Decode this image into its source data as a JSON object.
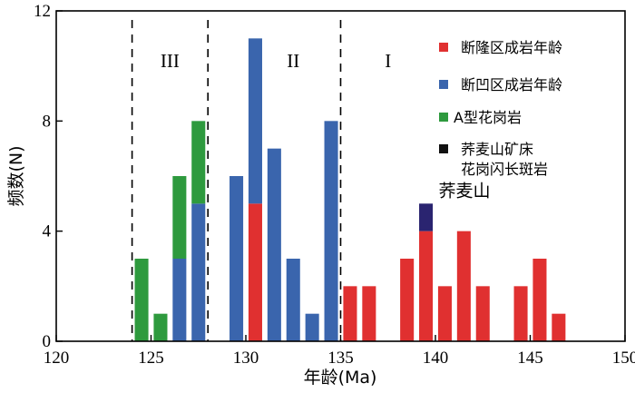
{
  "chart_data": {
    "type": "bar",
    "stacked": true,
    "xlabel": "年龄(Ma)",
    "ylabel": "频数(N)",
    "xlim": [
      120,
      150
    ],
    "ylim": [
      0,
      12
    ],
    "xticks": [
      120,
      125,
      130,
      135,
      140,
      145,
      150
    ],
    "yticks": [
      0,
      4,
      8,
      12
    ],
    "grid": false,
    "legend_position": "top-right",
    "zones": [
      {
        "label": "III",
        "from": 124,
        "to": 128
      },
      {
        "label": "II",
        "from": 128,
        "to": 135
      },
      {
        "label": "I",
        "from": 135,
        "to": 150
      }
    ],
    "zone_boundaries": [
      124,
      128,
      135
    ],
    "series": [
      {
        "name": "断隆区成岩年龄",
        "color": "#e03030",
        "x": [
          130.5,
          135.5,
          136.5,
          138.5,
          139.5,
          140.5,
          141.5,
          142.5,
          144.5,
          145.5,
          146.5
        ],
        "values": [
          5,
          2,
          2,
          3,
          4,
          2,
          4,
          2,
          2,
          3,
          1
        ]
      },
      {
        "name": "断凹区成岩年龄",
        "color": "#3a65ad",
        "x": [
          126.5,
          127.5,
          129.5,
          130.5,
          131.5,
          132.5,
          133.5,
          134.5
        ],
        "values": [
          3,
          5,
          6,
          6,
          7,
          3,
          1,
          8
        ]
      },
      {
        "name": "A型花岗岩",
        "color": "#2e9a3e",
        "x": [
          124.5,
          125.5,
          126.5,
          127.5
        ],
        "values": [
          3,
          1,
          3,
          3
        ]
      },
      {
        "name": "荞麦山矿床花岗闪长斑岩",
        "color": "#2a2470",
        "x": [
          139.5
        ],
        "values": [
          1
        ]
      }
    ],
    "annotations": [
      {
        "text": "荞麦山",
        "x": 139.5,
        "y": 5
      }
    ]
  },
  "legend": [
    {
      "label": "断隆区成岩年龄",
      "color": "#e03030"
    },
    {
      "label": "断凹区成岩年龄",
      "color": "#3a65ad"
    },
    {
      "label": "A型花岗岩",
      "color": "#2e9a3e"
    },
    {
      "label": "荞麦山矿床",
      "label2": "花岗闪长斑岩",
      "color": "#111111"
    }
  ]
}
